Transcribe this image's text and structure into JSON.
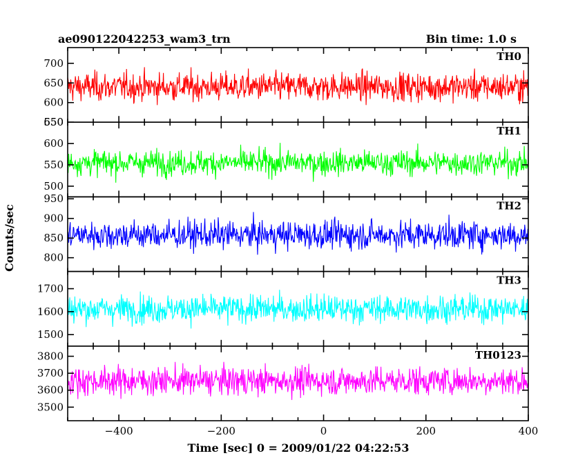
{
  "header": {
    "title": "ae090122042253_wam3_trn",
    "bin_time": "Bin time: 1.0 s"
  },
  "xlabel": "Time [sec] 0 = 2009/01/22 04:22:53",
  "ylabel": "Counts/sec",
  "chart_data": {
    "type": "line",
    "title": "ae090122042253_wam3_trn",
    "xlabel": "Time [sec] 0 = 2009/01/22 04:22:53",
    "ylabel": "Counts/sec",
    "x_range": [
      -500,
      400
    ],
    "x_step": 1.0,
    "x_ticks": [
      -400,
      -200,
      0,
      200,
      400
    ],
    "series": [
      {
        "name": "TH0",
        "color": "#ff0000",
        "ylim": [
          550,
          740
        ],
        "y_ticks": [
          550,
          600,
          650,
          700
        ],
        "mean": 640,
        "spread": 27
      },
      {
        "name": "TH1",
        "color": "#00ff00",
        "ylim": [
          475,
          650
        ],
        "y_ticks": [
          500,
          550,
          600,
          650
        ],
        "mean": 555,
        "spread": 22
      },
      {
        "name": "TH2",
        "color": "#0000ff",
        "ylim": [
          765,
          955
        ],
        "y_ticks": [
          800,
          850,
          900,
          950
        ],
        "mean": 858,
        "spread": 27
      },
      {
        "name": "TH3",
        "color": "#00ffff",
        "ylim": [
          1450,
          1775
        ],
        "y_ticks": [
          1500,
          1600,
          1700
        ],
        "mean": 1612,
        "spread": 45
      },
      {
        "name": "TH0123",
        "color": "#ff00ff",
        "ylim": [
          3420,
          3860
        ],
        "y_ticks": [
          3500,
          3600,
          3700,
          3800
        ],
        "mean": 3655,
        "spread": 62
      }
    ]
  }
}
